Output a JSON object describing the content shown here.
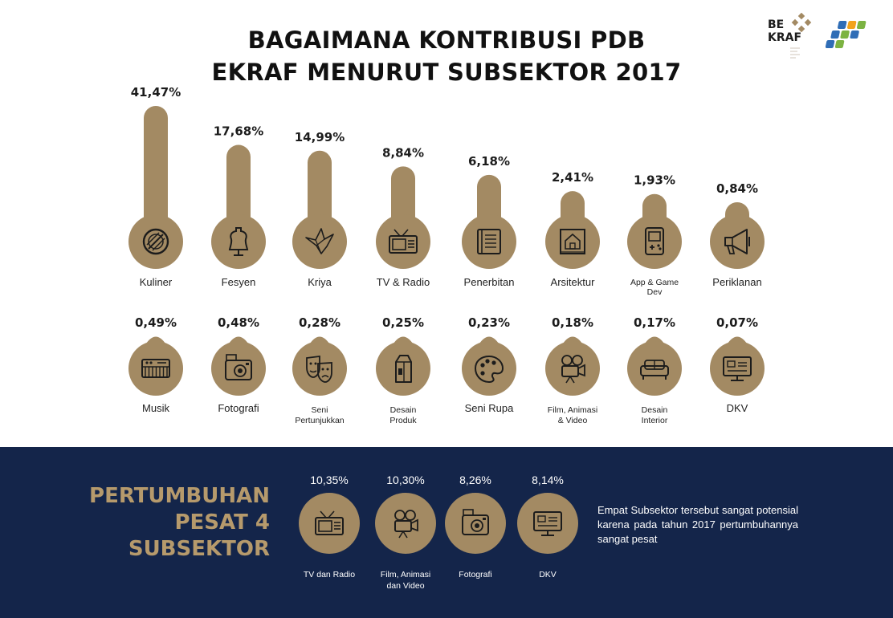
{
  "title_line1": "BAGAIMANA KONTRIBUSI PDB",
  "title_line2": "EKRAF MENURUT SUBSEKTOR 2017",
  "logos": {
    "bekraf_line1": "BE",
    "bekraf_line2": "KRAF"
  },
  "colors": {
    "gold": "#a38a63",
    "navy": "#14254a",
    "gold_text": "#b69a6c",
    "icon": "#1c1c1c"
  },
  "chart_data": [
    {
      "type": "bar",
      "categories": [
        "Kuliner",
        "Fesyen",
        "Kriya",
        "TV & Radio",
        "Penerbitan",
        "Arsitektur",
        "App & Game Dev",
        "Periklanan"
      ],
      "values": [
        41.47,
        17.68,
        14.99,
        8.84,
        6.18,
        2.41,
        1.93,
        0.84
      ],
      "value_labels": [
        "41,47%",
        "17,68%",
        "14,99%",
        "8,84%",
        "6,18%",
        "2,41%",
        "1,93%",
        "0,84%"
      ],
      "label_lines": [
        [
          "Kuliner"
        ],
        [
          "Fesyen"
        ],
        [
          "Kriya"
        ],
        [
          "TV & Radio"
        ],
        [
          "Penerbitan"
        ],
        [
          "Arsitektur"
        ],
        [
          "App & Game",
          "Dev"
        ],
        [
          "Periklanan"
        ]
      ],
      "icons": [
        "plate-icon",
        "dress-form-icon",
        "origami-bird-icon",
        "tv-radio-icon",
        "book-icon",
        "blueprint-icon",
        "game-console-icon",
        "megaphone-icon"
      ]
    },
    {
      "type": "table",
      "categories": [
        "Musik",
        "Fotografi",
        "Seni Pertunjukkan",
        "Desain Produk",
        "Seni Rupa",
        "Film, Animasi & Video",
        "Desain Interior",
        "DKV"
      ],
      "values": [
        0.49,
        0.48,
        0.28,
        0.25,
        0.23,
        0.18,
        0.17,
        0.07
      ],
      "value_labels": [
        "0,49%",
        "0,48%",
        "0,28%",
        "0,25%",
        "0,23%",
        "0,18%",
        "0,17%",
        "0,07%"
      ],
      "label_lines": [
        [
          "Musik"
        ],
        [
          "Fotografi"
        ],
        [
          "Seni",
          "Pertunjukkan"
        ],
        [
          "Desain",
          "Produk"
        ],
        [
          "Seni Rupa"
        ],
        [
          "Film, Animasi",
          "& Video"
        ],
        [
          "Desain",
          "Interior"
        ],
        [
          "DKV"
        ]
      ],
      "small_labels": [
        false,
        false,
        true,
        true,
        false,
        true,
        true,
        false
      ],
      "icons": [
        "keyboard-icon",
        "camera-icon",
        "theater-masks-icon",
        "milk-carton-icon",
        "palette-icon",
        "film-camera-icon",
        "sofa-icon",
        "monitor-icon"
      ]
    },
    {
      "type": "table",
      "categories": [
        "TV dan Radio",
        "Film, Animasi dan Video",
        "Fotografi",
        "DKV"
      ],
      "values": [
        10.35,
        10.3,
        8.26,
        8.14
      ],
      "value_labels": [
        "10,35%",
        "10,30%",
        "8,26%",
        "8,14%"
      ],
      "label_lines": [
        [
          "TV dan Radio"
        ],
        [
          "Film, Animasi",
          "dan Video"
        ],
        [
          "Fotografi"
        ],
        [
          "DKV"
        ]
      ],
      "icons": [
        "tv-radio-icon",
        "film-camera-icon",
        "camera-icon",
        "monitor-icon"
      ]
    }
  ],
  "growth": {
    "title": "PERTUMBUHAN\nPESAT 4\nSUBSEKTOR",
    "note": "Empat Subsektor tersebut sangat potensial karena pada tahun 2017 pertumbuhannya sangat pesat"
  }
}
